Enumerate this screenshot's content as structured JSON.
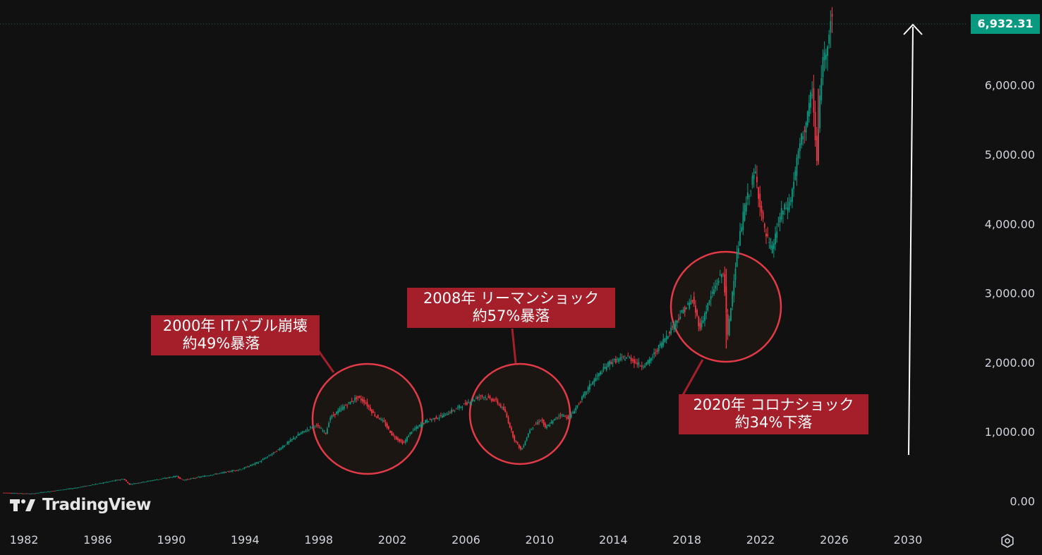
{
  "chart_data": {
    "type": "candlestick",
    "title": "",
    "xlabel": "",
    "ylabel": "",
    "xlim": [
      1981.0,
      2031.0
    ],
    "ylim": [
      -50,
      7200
    ],
    "x_ticks": [
      "1982",
      "1986",
      "1990",
      "1994",
      "1998",
      "2002",
      "2006",
      "2010",
      "2014",
      "2018",
      "2022",
      "2026",
      "2030"
    ],
    "y_ticks": [
      "0.00",
      "1,000.00",
      "2,000.00",
      "3,000.00",
      "4,000.00",
      "5,000.00",
      "6,000.00"
    ],
    "last_price": "6,932.31",
    "grid": false,
    "colors": {
      "up": "#089981",
      "down": "#f23645",
      "background": "#111111"
    },
    "series": [
      {
        "x": [
          1981.0,
          1982.6,
          1985.0,
          1987.6,
          1987.9,
          1990.5,
          1990.8,
          1994.0,
          1995.0,
          1996.0,
          1997.0,
          1998.0,
          1998.6,
          1998.8,
          1999.5,
          2000.3,
          2000.7,
          2001.2,
          2001.7,
          2002.2,
          2002.8,
          2003.2,
          2004.0,
          2005.0,
          2006.0,
          2007.0,
          2007.8,
          2008.3,
          2008.8,
          2009.2,
          2009.7,
          2010.3,
          2010.5,
          2011.3,
          2011.8,
          2012.3,
          2013.0,
          2014.0,
          2015.0,
          2015.7,
          2016.1,
          2017.0,
          2018.0,
          2018.5,
          2018.9,
          2019.5,
          2019.9,
          2020.2,
          2020.4,
          2020.8,
          2021.3,
          2021.9,
          2022.4,
          2022.8,
          2023.3,
          2023.8,
          2024.3,
          2024.8,
          2025.0,
          2025.25,
          2025.5,
          2025.8,
          2026.0
        ],
        "y": [
          120,
          105,
          190,
          320,
          240,
          360,
          300,
          460,
          570,
          740,
          940,
          1100,
          980,
          1200,
          1350,
          1500,
          1430,
          1250,
          1150,
          950,
          830,
          1000,
          1150,
          1240,
          1380,
          1520,
          1450,
          1300,
          900,
          730,
          1050,
          1180,
          1050,
          1250,
          1200,
          1400,
          1700,
          2000,
          2080,
          1950,
          2000,
          2350,
          2750,
          2900,
          2500,
          2950,
          3200,
          3300,
          2350,
          3350,
          4200,
          4750,
          3900,
          3600,
          4150,
          4300,
          5100,
          5600,
          5950,
          4900,
          6200,
          6600,
          6932
        ]
      }
    ]
  },
  "annotations": [
    {
      "line1": "2000年 ITバブル崩壊",
      "line2": "約49%暴落"
    },
    {
      "line1": "2008年 リーマンショック",
      "line2": "約57%暴落"
    },
    {
      "line1": "2020年 コロナショック",
      "line2": "約34%下落"
    }
  ],
  "branding": {
    "logo_text": "TradingView"
  },
  "icons": {
    "logo": "tradingview-logo-icon",
    "settings": "settings-icon",
    "arrow": "up-arrow-icon"
  }
}
